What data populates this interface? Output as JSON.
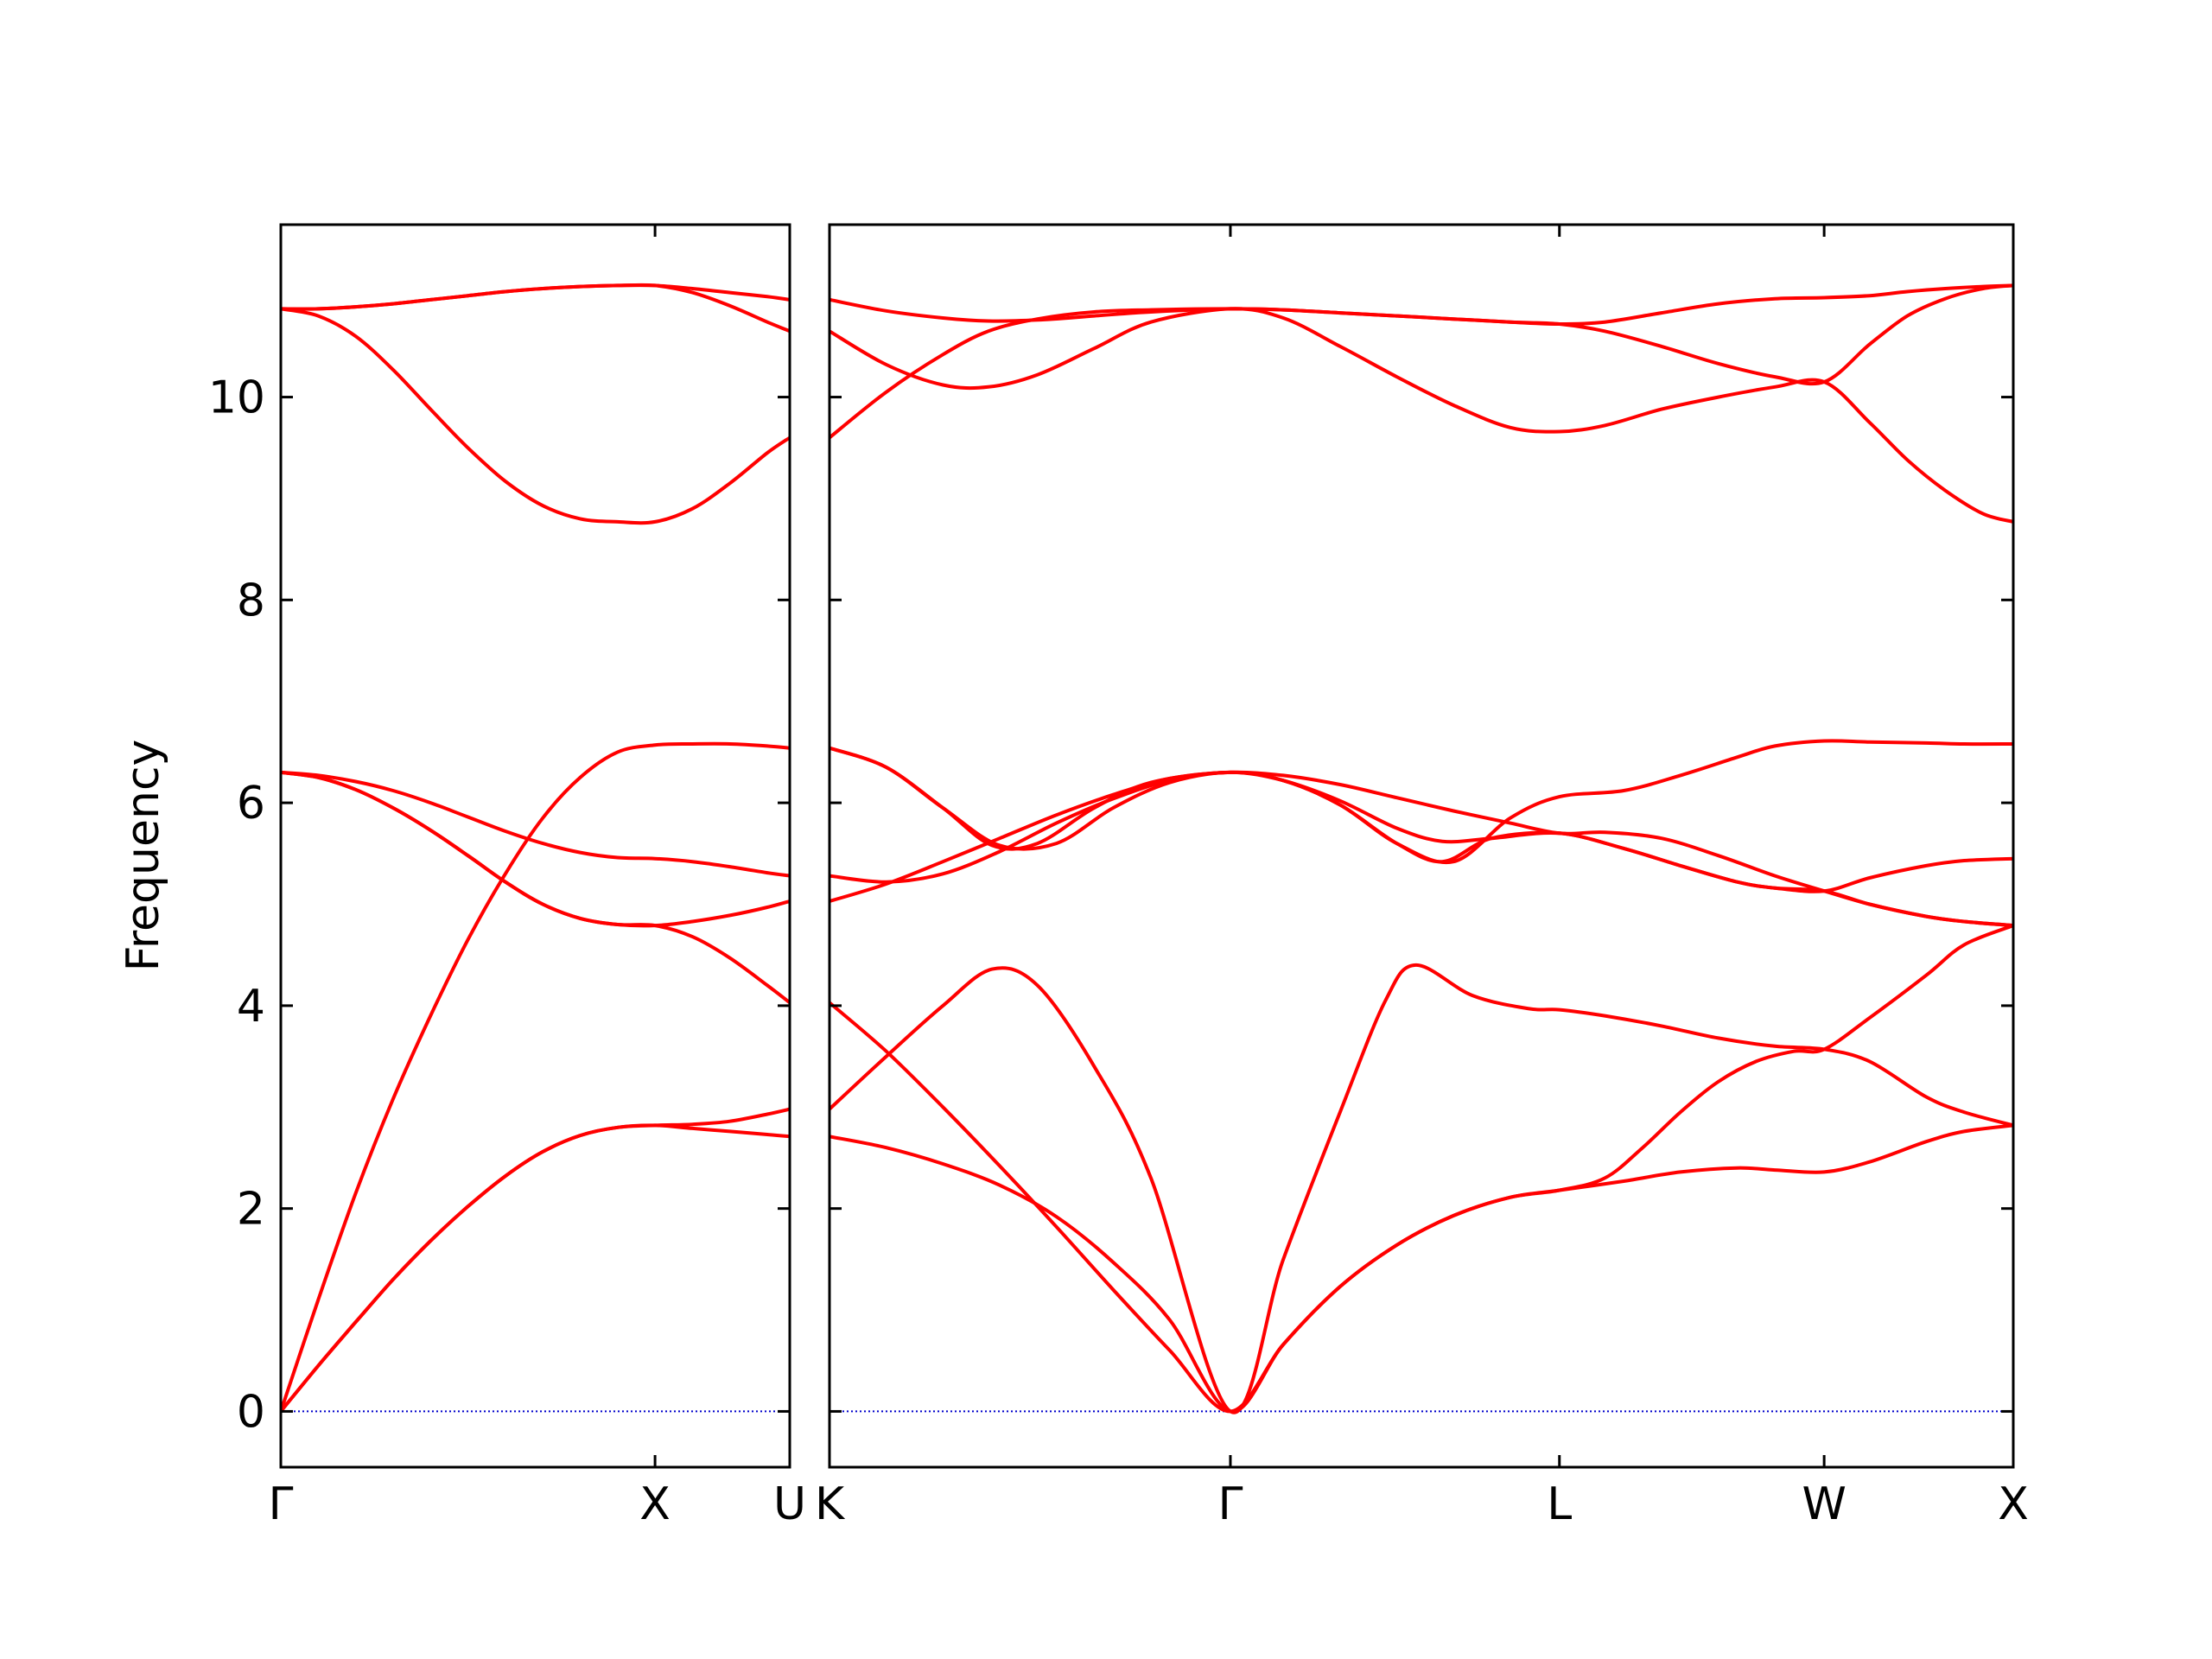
{
  "chart_data": {
    "type": "line",
    "ylabel": "Frequency",
    "ylim": [
      -0.55,
      11.7
    ],
    "yticks": [
      0,
      2,
      4,
      6,
      8,
      10
    ],
    "zero_line": {
      "value": 0,
      "style": "dotted",
      "color": "#0000cc"
    },
    "line_color": "#ff0000",
    "panels": [
      {
        "xticks": [
          {
            "x": 0,
            "label": "Γ"
          },
          {
            "x": 1,
            "label": "X"
          },
          {
            "x": 1.36,
            "label": "U"
          }
        ],
        "xlim": [
          0,
          1.36
        ],
        "series": [
          {
            "x": [
              0,
              0.1,
              0.2,
              0.3,
              0.4,
              0.5,
              0.6,
              0.7,
              0.8,
              0.9,
              1.0,
              1.1,
              1.2,
              1.3,
              1.36
            ],
            "y": [
              0,
              0.45,
              0.88,
              1.3,
              1.68,
              2.02,
              2.32,
              2.56,
              2.72,
              2.8,
              2.82,
              2.79,
              2.76,
              2.73,
              2.71
            ]
          },
          {
            "x": [
              0,
              0.1,
              0.2,
              0.3,
              0.4,
              0.5,
              0.6,
              0.7,
              0.8,
              0.9,
              1.0,
              1.1,
              1.2,
              1.3,
              1.36
            ],
            "y": [
              0,
              1.1,
              2.15,
              3.08,
              3.9,
              4.65,
              5.3,
              5.85,
              6.25,
              6.5,
              6.57,
              6.58,
              6.58,
              6.56,
              6.54
            ]
          },
          {
            "x": [
              0,
              0.1,
              0.2,
              0.3,
              0.4,
              0.5,
              0.6,
              0.7,
              0.8,
              0.9,
              1.0,
              1.1,
              1.2,
              1.3,
              1.36
            ],
            "y": [
              0,
              0.45,
              0.88,
              1.3,
              1.68,
              2.02,
              2.32,
              2.56,
              2.72,
              2.8,
              2.82,
              2.83,
              2.86,
              2.93,
              2.98
            ]
          },
          {
            "x": [
              0,
              0.1,
              0.2,
              0.3,
              0.4,
              0.5,
              0.6,
              0.7,
              0.8,
              0.9,
              1.0,
              1.1,
              1.2,
              1.3,
              1.36
            ],
            "y": [
              6.3,
              6.25,
              6.13,
              5.95,
              5.73,
              5.48,
              5.22,
              5.0,
              4.86,
              4.8,
              4.79,
              4.68,
              4.47,
              4.2,
              4.03
            ]
          },
          {
            "x": [
              0,
              0.1,
              0.2,
              0.3,
              0.4,
              0.5,
              0.6,
              0.7,
              0.8,
              0.9,
              1.0,
              1.1,
              1.2,
              1.3,
              1.36
            ],
            "y": [
              6.3,
              6.25,
              6.13,
              5.95,
              5.73,
              5.48,
              5.22,
              5.0,
              4.86,
              4.8,
              4.79,
              4.83,
              4.89,
              4.97,
              5.03
            ]
          },
          {
            "x": [
              0,
              0.1,
              0.2,
              0.3,
              0.4,
              0.5,
              0.6,
              0.7,
              0.8,
              0.9,
              1.0,
              1.1,
              1.2,
              1.3,
              1.36
            ],
            "y": [
              6.3,
              6.27,
              6.21,
              6.12,
              6.0,
              5.86,
              5.72,
              5.6,
              5.51,
              5.46,
              5.45,
              5.42,
              5.37,
              5.31,
              5.28
            ]
          },
          {
            "x": [
              0,
              0.1,
              0.2,
              0.3,
              0.4,
              0.5,
              0.6,
              0.7,
              0.8,
              0.9,
              1.0,
              1.1,
              1.2,
              1.3,
              1.36
            ],
            "y": [
              10.87,
              10.8,
              10.6,
              10.27,
              9.88,
              9.5,
              9.17,
              8.93,
              8.8,
              8.77,
              8.77,
              8.9,
              9.15,
              9.45,
              9.6
            ]
          },
          {
            "x": [
              0,
              0.1,
              0.2,
              0.3,
              0.4,
              0.5,
              0.6,
              0.7,
              0.8,
              0.9,
              1.0,
              1.1,
              1.2,
              1.3,
              1.36
            ],
            "y": [
              10.87,
              10.87,
              10.89,
              10.92,
              10.96,
              11.0,
              11.04,
              11.07,
              11.09,
              11.1,
              11.1,
              11.03,
              10.9,
              10.74,
              10.65
            ]
          },
          {
            "x": [
              0,
              0.1,
              0.2,
              0.3,
              0.4,
              0.5,
              0.6,
              0.7,
              0.8,
              0.9,
              1.0,
              1.1,
              1.2,
              1.3,
              1.36
            ],
            "y": [
              10.87,
              10.87,
              10.89,
              10.92,
              10.96,
              11.0,
              11.04,
              11.07,
              11.09,
              11.1,
              11.1,
              11.07,
              11.03,
              10.99,
              10.96
            ]
          }
        ]
      },
      {
        "xticks": [
          {
            "x": 0,
            "label": "K"
          },
          {
            "x": 1.06,
            "label": "Γ"
          },
          {
            "x": 1.93,
            "label": "L"
          },
          {
            "x": 2.63,
            "label": "W"
          },
          {
            "x": 3.13,
            "label": "X"
          }
        ],
        "xlim": [
          0,
          3.13
        ],
        "series": [
          {
            "x": [
              0,
              0.15,
              0.3,
              0.45,
              0.6,
              0.75,
              0.9,
              1.06,
              1.2,
              1.35,
              1.5,
              1.65,
              1.8,
              1.93,
              2.1,
              2.25,
              2.4,
              2.5,
              2.63,
              2.75,
              2.9,
              3.0,
              3.13
            ],
            "y": [
              2.71,
              2.6,
              2.44,
              2.23,
              1.92,
              1.47,
              0.9,
              0,
              0.66,
              1.23,
              1.64,
              1.93,
              2.11,
              2.18,
              2.27,
              2.36,
              2.4,
              2.38,
              2.36,
              2.46,
              2.66,
              2.76,
              2.82
            ]
          },
          {
            "x": [
              0,
              0.15,
              0.3,
              0.43,
              0.55,
              0.7,
              0.85,
              1.06,
              1.2,
              1.35,
              1.47,
              1.55,
              1.7,
              1.85,
              1.93,
              2.05,
              2.2,
              2.35,
              2.5,
              2.63,
              2.75,
              2.9,
              3.0,
              3.13
            ],
            "y": [
              2.98,
              3.5,
              4.0,
              4.36,
              4.2,
              3.4,
              2.3,
              0,
              1.5,
              2.95,
              4.05,
              4.4,
              4.1,
              3.97,
              3.96,
              3.9,
              3.8,
              3.68,
              3.6,
              3.57,
              3.45,
              3.1,
              2.95,
              2.82
            ]
          },
          {
            "x": [
              0,
              0.15,
              0.3,
              0.45,
              0.6,
              0.75,
              0.9,
              1.06,
              1.2,
              1.35,
              1.5,
              1.65,
              1.8,
              1.93,
              2.05,
              2.15,
              2.25,
              2.35,
              2.45,
              2.55,
              2.63,
              2.75,
              2.9,
              3.0,
              3.13
            ],
            "y": [
              4.03,
              3.55,
              3.0,
              2.42,
              1.82,
              1.2,
              0.6,
              0,
              0.66,
              1.23,
              1.64,
              1.93,
              2.11,
              2.18,
              2.3,
              2.6,
              2.95,
              3.25,
              3.45,
              3.55,
              3.57,
              3.88,
              4.3,
              4.6,
              4.79
            ]
          },
          {
            "x": [
              0,
              0.15,
              0.3,
              0.43,
              0.55,
              0.7,
              0.85,
              1.06,
              1.2,
              1.35,
              1.5,
              1.62,
              1.75,
              1.93,
              2.1,
              2.25,
              2.4,
              2.5,
              2.63,
              2.75,
              2.9,
              3.0,
              3.13
            ],
            "y": [
              6.54,
              6.35,
              5.95,
              5.58,
              5.6,
              5.95,
              6.2,
              6.3,
              6.22,
              5.98,
              5.6,
              5.42,
              5.65,
              5.7,
              5.55,
              5.38,
              5.22,
              5.16,
              5.13,
              5.0,
              4.88,
              4.83,
              4.79
            ]
          },
          {
            "x": [
              0,
              0.15,
              0.3,
              0.45,
              0.6,
              0.75,
              0.9,
              1.06,
              1.2,
              1.35,
              1.5,
              1.62,
              1.75,
              1.93,
              2.1,
              2.25,
              2.4,
              2.5,
              2.63,
              2.75,
              2.9,
              3.0,
              3.13
            ],
            "y": [
              5.28,
              5.22,
              5.3,
              5.52,
              5.8,
              6.04,
              6.22,
              6.3,
              6.22,
              6.02,
              5.75,
              5.62,
              5.65,
              5.7,
              5.55,
              5.38,
              5.22,
              5.16,
              5.13,
              5.26,
              5.38,
              5.43,
              5.45
            ]
          },
          {
            "x": [
              0,
              0.15,
              0.3,
              0.45,
              0.6,
              0.75,
              0.9,
              1.06,
              1.2,
              1.35,
              1.5,
              1.65,
              1.8,
              1.93,
              2.05,
              2.2,
              2.35,
              2.5,
              2.63,
              2.75,
              2.9,
              3.0,
              3.13
            ],
            "y": [
              5.03,
              5.2,
              5.42,
              5.65,
              5.88,
              6.08,
              6.24,
              6.3,
              6.27,
              6.18,
              6.05,
              5.92,
              5.8,
              5.7,
              5.71,
              5.65,
              5.48,
              5.28,
              5.13,
              5.0,
              4.88,
              4.83,
              4.79
            ]
          },
          {
            "x": [
              0,
              0.15,
              0.3,
              0.45,
              0.6,
              0.75,
              0.9,
              1.06,
              1.2,
              1.35,
              1.5,
              1.65,
              1.8,
              1.93,
              2.1,
              2.25,
              2.4,
              2.5,
              2.63,
              2.75,
              2.9,
              3.0,
              3.13
            ],
            "y": [
              6.54,
              6.35,
              5.95,
              5.58,
              5.6,
              5.95,
              6.2,
              6.3,
              6.22,
              5.98,
              5.6,
              5.42,
              5.85,
              6.06,
              6.12,
              6.27,
              6.45,
              6.56,
              6.61,
              6.6,
              6.59,
              6.58,
              6.58
            ]
          },
          {
            "x": [
              0,
              0.15,
              0.3,
              0.42,
              0.55,
              0.7,
              0.85,
              1.06,
              1.2,
              1.35,
              1.5,
              1.65,
              1.8,
              1.93,
              2.05,
              2.2,
              2.35,
              2.5,
              2.63,
              2.75,
              2.85,
              2.95,
              3.05,
              3.13
            ],
            "y": [
              10.65,
              10.32,
              10.12,
              10.1,
              10.22,
              10.48,
              10.74,
              10.87,
              10.78,
              10.5,
              10.2,
              9.92,
              9.7,
              9.66,
              9.72,
              9.88,
              10.0,
              10.1,
              10.15,
              9.75,
              9.38,
              9.08,
              8.85,
              8.77
            ]
          },
          {
            "x": [
              0,
              0.15,
              0.3,
              0.42,
              0.55,
              0.7,
              0.85,
              1.06,
              1.2,
              1.35,
              1.5,
              1.65,
              1.8,
              1.93,
              2.05,
              2.2,
              2.35,
              2.5,
              2.63,
              2.75,
              2.85,
              2.95,
              3.05,
              3.13
            ],
            "y": [
              9.6,
              10.05,
              10.42,
              10.65,
              10.77,
              10.84,
              10.86,
              10.87,
              10.86,
              10.83,
              10.8,
              10.77,
              10.74,
              10.72,
              10.65,
              10.5,
              10.33,
              10.2,
              10.15,
              10.52,
              10.8,
              10.97,
              11.07,
              11.1
            ]
          },
          {
            "x": [
              0,
              0.15,
              0.3,
              0.42,
              0.55,
              0.7,
              0.85,
              1.06,
              1.2,
              1.35,
              1.5,
              1.65,
              1.8,
              1.93,
              2.05,
              2.2,
              2.35,
              2.5,
              2.63,
              2.75,
              2.85,
              2.95,
              3.05,
              3.13
            ],
            "y": [
              10.96,
              10.85,
              10.78,
              10.75,
              10.76,
              10.8,
              10.84,
              10.87,
              10.86,
              10.83,
              10.8,
              10.77,
              10.74,
              10.72,
              10.74,
              10.83,
              10.92,
              10.97,
              10.98,
              11.0,
              11.04,
              11.07,
              11.09,
              11.1
            ]
          }
        ]
      }
    ]
  }
}
